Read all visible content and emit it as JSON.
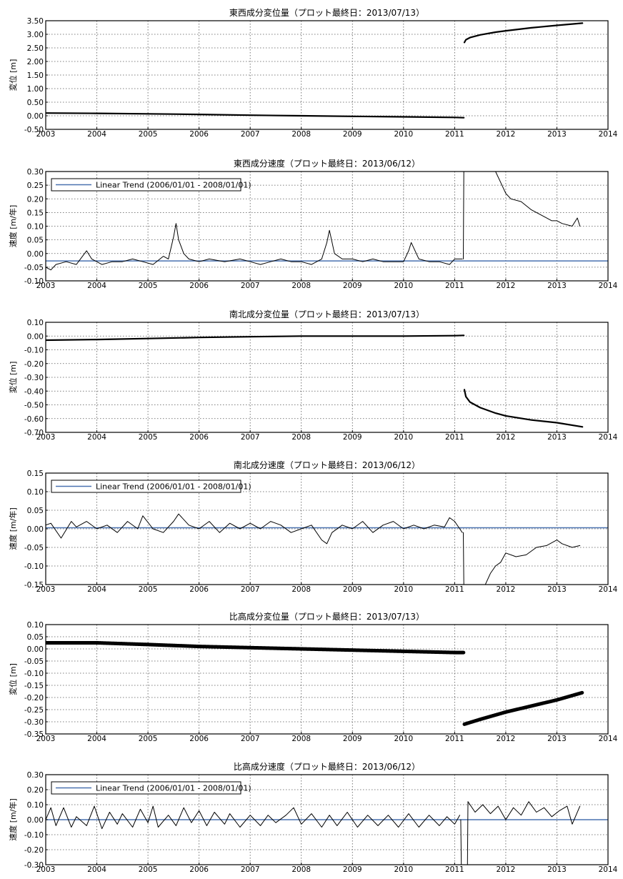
{
  "figure": {
    "background": "#ffffff",
    "x_ticks": [
      "2003",
      "2004",
      "2005",
      "2006",
      "2007",
      "2008",
      "2009",
      "2010",
      "2011",
      "2012",
      "2013",
      "2014"
    ],
    "colors": {
      "data": "#000000",
      "trend": "#4a72b0",
      "grid": "#555555"
    },
    "legend_label": "Linear Trend (2006/01/01 - 2008/01/01)"
  },
  "chart_data": [
    {
      "type": "line",
      "title": "東西成分変位量（プロット最終日：2013/07/13）",
      "ylabel": "変位 [m]",
      "xlim": [
        2003,
        2014
      ],
      "ylim": [
        -0.5,
        3.5
      ],
      "yticks": [
        "3.50",
        "3.00",
        "2.50",
        "2.00",
        "1.50",
        "1.00",
        "0.50",
        "0.00",
        "-0.50"
      ],
      "grid": true,
      "legend": null,
      "series": [
        {
          "x": [
            2003.0,
            2004.0,
            2005.0,
            2006.0,
            2007.0,
            2008.0,
            2009.0,
            2010.0,
            2011.0,
            2011.18
          ],
          "y": [
            0.1,
            0.09,
            0.07,
            0.05,
            0.02,
            0.0,
            -0.02,
            -0.04,
            -0.06,
            -0.07
          ]
        },
        {
          "x": [
            2011.19,
            2011.22,
            2011.3,
            2011.5,
            2011.8,
            2012.0,
            2012.5,
            2013.0,
            2013.5
          ],
          "y": [
            2.7,
            2.8,
            2.88,
            2.98,
            3.08,
            3.13,
            3.24,
            3.33,
            3.41
          ]
        }
      ]
    },
    {
      "type": "line",
      "title": "東西成分速度（プロット最終日：2013/06/12）",
      "ylabel": "速度 [m/年]",
      "xlim": [
        2003,
        2014
      ],
      "ylim": [
        -0.1,
        0.3
      ],
      "yticks": [
        "0.30",
        "0.25",
        "0.20",
        "0.15",
        "0.10",
        "0.05",
        "0.00",
        "-0.05",
        "-0.10"
      ],
      "grid": true,
      "legend": "top-left",
      "trend": -0.027,
      "series": [
        {
          "x": [
            2003.0,
            2003.1,
            2003.2,
            2003.4,
            2003.6,
            2003.8,
            2003.9,
            2004.1,
            2004.3,
            2004.5,
            2004.7,
            2004.9,
            2005.1,
            2005.3,
            2005.4,
            2005.5,
            2005.55,
            2005.6,
            2005.7,
            2005.8,
            2006.0,
            2006.2,
            2006.5,
            2006.8,
            2007.0,
            2007.2,
            2007.4,
            2007.6,
            2007.8,
            2008.0,
            2008.2,
            2008.4,
            2008.5,
            2008.55,
            2008.65,
            2008.8,
            2009.0,
            2009.2,
            2009.4,
            2009.6,
            2009.8,
            2010.0,
            2010.1,
            2010.15,
            2010.3,
            2010.5,
            2010.7,
            2010.9,
            2011.0,
            2011.15
          ],
          "y": [
            -0.05,
            -0.06,
            -0.04,
            -0.03,
            -0.04,
            0.01,
            -0.02,
            -0.04,
            -0.03,
            -0.03,
            -0.02,
            -0.03,
            -0.04,
            -0.01,
            -0.02,
            0.06,
            0.11,
            0.05,
            0.0,
            -0.02,
            -0.03,
            -0.02,
            -0.03,
            -0.02,
            -0.03,
            -0.04,
            -0.03,
            -0.02,
            -0.03,
            -0.03,
            -0.04,
            -0.02,
            0.04,
            0.085,
            0.0,
            -0.02,
            -0.02,
            -0.03,
            -0.02,
            -0.03,
            -0.03,
            -0.03,
            0.01,
            0.04,
            -0.02,
            -0.03,
            -0.03,
            -0.04,
            -0.02,
            -0.02
          ]
        },
        {
          "x": [
            2011.17,
            2011.18
          ],
          "y": [
            -0.02,
            0.3
          ]
        },
        {
          "x": [
            2011.8,
            2011.9,
            2012.0,
            2012.1,
            2012.3,
            2012.5,
            2012.7,
            2012.9,
            2013.0,
            2013.1,
            2013.3,
            2013.4,
            2013.45
          ],
          "y": [
            0.3,
            0.26,
            0.22,
            0.2,
            0.19,
            0.16,
            0.14,
            0.12,
            0.12,
            0.11,
            0.1,
            0.13,
            0.1
          ]
        }
      ]
    },
    {
      "type": "line",
      "title": "南北成分変位量（プロット最終日：2013/07/13）",
      "ylabel": "変位 [m]",
      "xlim": [
        2003,
        2014
      ],
      "ylim": [
        -0.7,
        0.1
      ],
      "yticks": [
        "0.10",
        "0.00",
        "-0.10",
        "-0.20",
        "-0.30",
        "-0.40",
        "-0.50",
        "-0.60",
        "-0.70"
      ],
      "grid": true,
      "legend": null,
      "series": [
        {
          "x": [
            2003.0,
            2004.0,
            2005.0,
            2006.0,
            2007.0,
            2008.0,
            2009.0,
            2010.0,
            2011.0,
            2011.18
          ],
          "y": [
            -0.03,
            -0.025,
            -0.018,
            -0.01,
            -0.005,
            0.0,
            0.0,
            0.0,
            0.003,
            0.005
          ]
        },
        {
          "x": [
            2011.19,
            2011.22,
            2011.3,
            2011.5,
            2011.8,
            2012.0,
            2012.5,
            2013.0,
            2013.5
          ],
          "y": [
            -0.39,
            -0.44,
            -0.48,
            -0.52,
            -0.56,
            -0.58,
            -0.61,
            -0.63,
            -0.66
          ]
        }
      ]
    },
    {
      "type": "line",
      "title": "南北成分速度（プロット最終日：2013/06/12）",
      "ylabel": "速度 [m/年]",
      "xlim": [
        2003,
        2014
      ],
      "ylim": [
        -0.15,
        0.15
      ],
      "yticks": [
        "0.15",
        "0.10",
        "0.05",
        "0.00",
        "-0.05",
        "-0.10",
        "-0.15"
      ],
      "grid": true,
      "legend": "top-left",
      "trend": 0.003,
      "series": [
        {
          "x": [
            2003.0,
            2003.1,
            2003.3,
            2003.5,
            2003.6,
            2003.8,
            2004.0,
            2004.2,
            2004.4,
            2004.6,
            2004.8,
            2004.9,
            2005.1,
            2005.3,
            2005.5,
            2005.6,
            2005.8,
            2006.0,
            2006.2,
            2006.4,
            2006.6,
            2006.8,
            2007.0,
            2007.2,
            2007.4,
            2007.6,
            2007.8,
            2008.0,
            2008.2,
            2008.4,
            2008.5,
            2008.6,
            2008.8,
            2009.0,
            2009.2,
            2009.4,
            2009.6,
            2009.8,
            2010.0,
            2010.2,
            2010.4,
            2010.6,
            2010.8,
            2010.9,
            2011.0,
            2011.1,
            2011.15
          ],
          "y": [
            0.01,
            0.015,
            -0.025,
            0.02,
            0.005,
            0.02,
            0.0,
            0.01,
            -0.01,
            0.02,
            0.0,
            0.035,
            0.0,
            -0.01,
            0.02,
            0.04,
            0.01,
            0.0,
            0.02,
            -0.01,
            0.015,
            0.0,
            0.015,
            0.0,
            0.02,
            0.01,
            -0.01,
            0.0,
            0.01,
            -0.03,
            -0.04,
            -0.01,
            0.01,
            0.0,
            0.02,
            -0.01,
            0.01,
            0.02,
            0.0,
            0.01,
            0.0,
            0.01,
            0.005,
            0.03,
            0.02,
            0.0,
            -0.01
          ]
        },
        {
          "x": [
            2011.17,
            2011.18
          ],
          "y": [
            -0.01,
            -0.15
          ]
        },
        {
          "x": [
            2011.6,
            2011.7,
            2011.8,
            2011.9,
            2012.0,
            2012.2,
            2012.4,
            2012.6,
            2012.8,
            2013.0,
            2013.1,
            2013.3,
            2013.45
          ],
          "y": [
            -0.15,
            -0.12,
            -0.1,
            -0.09,
            -0.065,
            -0.075,
            -0.07,
            -0.05,
            -0.045,
            -0.03,
            -0.04,
            -0.05,
            -0.045
          ]
        }
      ]
    },
    {
      "type": "scatter",
      "title": "比高成分変位量（プロット最終日：2013/07/13）",
      "ylabel": "変位 [m]",
      "xlim": [
        2003,
        2014
      ],
      "ylim": [
        -0.35,
        0.1
      ],
      "yticks": [
        "0.10",
        "0.05",
        "0.00",
        "-0.05",
        "-0.10",
        "-0.15",
        "-0.20",
        "-0.25",
        "-0.30",
        "-0.35"
      ],
      "grid": true,
      "legend": null,
      "series": [
        {
          "x": [
            2003.0,
            2004.0,
            2005.0,
            2006.0,
            2007.0,
            2008.0,
            2009.0,
            2010.0,
            2011.0,
            2011.18
          ],
          "y": [
            0.025,
            0.025,
            0.018,
            0.01,
            0.005,
            0.0,
            -0.005,
            -0.01,
            -0.015,
            -0.015
          ]
        },
        {
          "x": [
            2011.19,
            2011.5,
            2012.0,
            2012.5,
            2013.0,
            2013.5
          ],
          "y": [
            -0.31,
            -0.29,
            -0.26,
            -0.235,
            -0.21,
            -0.18
          ]
        }
      ]
    },
    {
      "type": "line",
      "title": "比高成分速度（プロット最終日：2013/06/12）",
      "ylabel": "速度 [m/年]",
      "xlim": [
        2003,
        2014
      ],
      "ylim": [
        -0.3,
        0.3
      ],
      "yticks": [
        "0.30",
        "0.20",
        "0.10",
        "0.00",
        "-0.10",
        "-0.20",
        "-0.30"
      ],
      "grid": true,
      "legend": "top-left",
      "trend": 0.0,
      "series": [
        {
          "x": [
            2003.0,
            2003.1,
            2003.2,
            2003.35,
            2003.5,
            2003.6,
            2003.8,
            2003.95,
            2004.1,
            2004.25,
            2004.4,
            2004.5,
            2004.7,
            2004.85,
            2005.0,
            2005.1,
            2005.2,
            2005.4,
            2005.55,
            2005.7,
            2005.85,
            2006.0,
            2006.15,
            2006.3,
            2006.5,
            2006.6,
            2006.8,
            2007.0,
            2007.2,
            2007.35,
            2007.5,
            2007.7,
            2007.85,
            2008.0,
            2008.2,
            2008.4,
            2008.55,
            2008.7,
            2008.9,
            2009.1,
            2009.3,
            2009.5,
            2009.7,
            2009.9,
            2010.1,
            2010.3,
            2010.5,
            2010.7,
            2010.85,
            2011.0,
            2011.1
          ],
          "y": [
            0.0,
            0.08,
            -0.04,
            0.08,
            -0.05,
            0.02,
            -0.04,
            0.09,
            -0.06,
            0.05,
            -0.03,
            0.04,
            -0.05,
            0.07,
            -0.02,
            0.09,
            -0.05,
            0.03,
            -0.04,
            0.08,
            -0.02,
            0.06,
            -0.04,
            0.05,
            -0.03,
            0.04,
            -0.05,
            0.03,
            -0.04,
            0.03,
            -0.02,
            0.03,
            0.08,
            -0.03,
            0.04,
            -0.05,
            0.03,
            -0.04,
            0.05,
            -0.05,
            0.03,
            -0.04,
            0.03,
            -0.05,
            0.04,
            -0.05,
            0.03,
            -0.04,
            0.02,
            -0.03,
            0.03
          ]
        },
        {
          "x": [
            2011.12,
            2011.13
          ],
          "y": [
            0.0,
            -0.3
          ]
        },
        {
          "x": [
            2011.25,
            2011.26
          ],
          "y": [
            -0.3,
            0.12
          ]
        },
        {
          "x": [
            2011.26,
            2011.4,
            2011.55,
            2011.7,
            2011.85,
            2012.0,
            2012.15,
            2012.3,
            2012.45,
            2012.6,
            2012.75,
            2012.9,
            2013.05,
            2013.2,
            2013.3,
            2013.45
          ],
          "y": [
            0.12,
            0.05,
            0.1,
            0.04,
            0.09,
            0.0,
            0.08,
            0.03,
            0.12,
            0.05,
            0.08,
            0.02,
            0.06,
            0.09,
            -0.03,
            0.09
          ]
        }
      ]
    }
  ]
}
